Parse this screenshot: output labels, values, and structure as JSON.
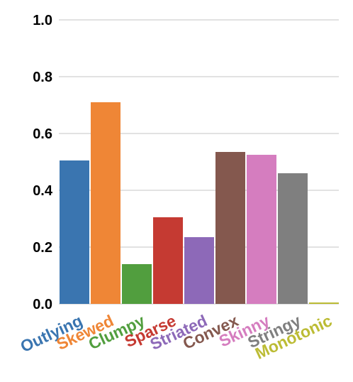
{
  "chart_data": {
    "type": "bar",
    "title": "",
    "xlabel": "",
    "ylabel": "",
    "ylim": [
      0,
      1.0
    ],
    "yticks": [
      "0.0",
      "0.2",
      "0.4",
      "0.6",
      "0.8",
      "1.0"
    ],
    "grid": true,
    "categories": [
      "Outlying",
      "Skewed",
      "Clumpy",
      "Sparse",
      "Striated",
      "Convex",
      "Skinny",
      "Stringy",
      "Monotonic"
    ],
    "values": [
      0.505,
      0.71,
      0.14,
      0.305,
      0.235,
      0.535,
      0.525,
      0.46,
      0.005
    ],
    "colors": [
      "#3a75b0",
      "#ef8636",
      "#519e3e",
      "#c53a32",
      "#8d69b8",
      "#84584e",
      "#d57dbf",
      "#7f7f7f",
      "#bcbc35"
    ]
  }
}
